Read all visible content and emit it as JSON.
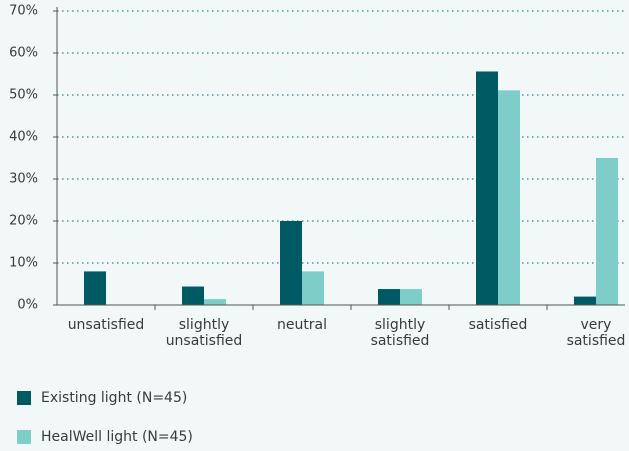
{
  "chart_data": {
    "type": "bar",
    "categories": [
      "unsatisfied",
      "slightly unsatisfied",
      "neutral",
      "slightly satisfied",
      "satisfied",
      "very satisfied"
    ],
    "series": [
      {
        "name": "Existing light (N=45)",
        "color": "#005a64",
        "values": [
          8,
          4.4,
          20,
          3.8,
          55.6,
          2
        ]
      },
      {
        "name": "HealWell light (N=45)",
        "color": "#7ecdc8",
        "values": [
          0,
          1.4,
          8,
          3.8,
          51.1,
          35
        ]
      }
    ],
    "ylim": [
      0,
      70
    ],
    "yticks": [
      {
        "value": 0,
        "label": "0%"
      },
      {
        "value": 10,
        "label": "10%"
      },
      {
        "value": 20,
        "label": "20%"
      },
      {
        "value": 30,
        "label": "30%"
      },
      {
        "value": 40,
        "label": "40%"
      },
      {
        "value": 50,
        "label": "50%"
      },
      {
        "value": 60,
        "label": "60%"
      },
      {
        "value": 70,
        "label": "70%"
      }
    ],
    "grid": true
  }
}
